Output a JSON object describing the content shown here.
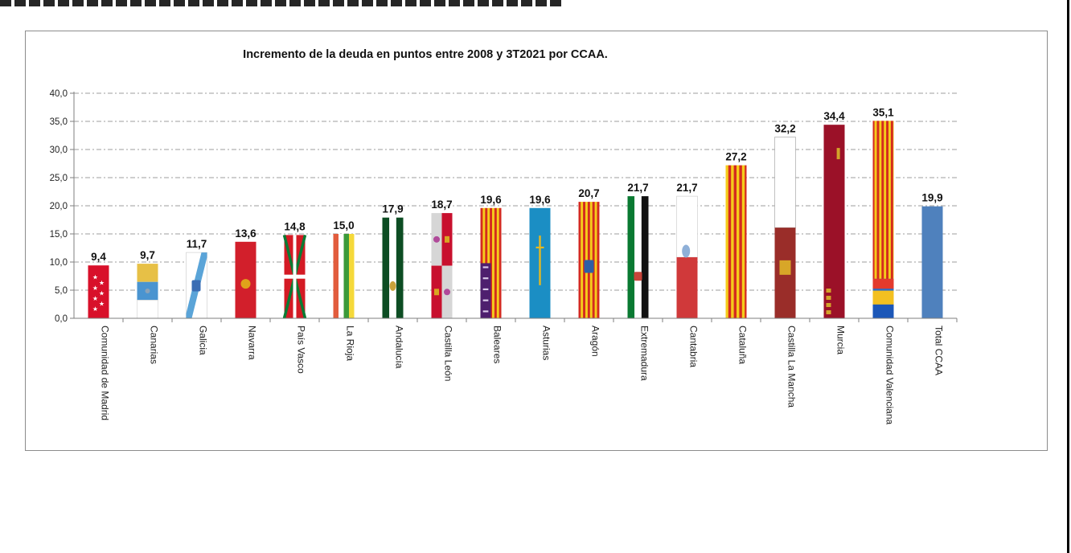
{
  "chart_data": {
    "type": "bar",
    "title": "Incremento de la deuda en puntos entre 2008 y 3T2021 por CCAA.",
    "xlabel": "",
    "ylabel": "",
    "ylim": [
      0,
      40
    ],
    "yticks": [
      "0,0",
      "5,0",
      "10,0",
      "15,0",
      "20,0",
      "25,0",
      "30,0",
      "35,0",
      "40,0"
    ],
    "grid": true,
    "categories": [
      "Comunidad de Madrid",
      "Canarias",
      "Galicia",
      "Navarra",
      "País Vasco",
      "La Rioja",
      "Andalucía",
      "Castilla León",
      "Baleares",
      "Asturias",
      "Aragón",
      "Extremadura",
      "Cantabria",
      "Cataluña",
      "Castilla La Mancha",
      "Murcia",
      "Comunidad Valenciana",
      "Total CCAA"
    ],
    "values": [
      9.4,
      9.7,
      11.7,
      13.6,
      14.8,
      15.0,
      17.9,
      18.7,
      19.6,
      19.6,
      20.7,
      21.7,
      21.7,
      27.2,
      32.2,
      34.4,
      35.1,
      19.9
    ],
    "data_labels": [
      "9,4",
      "9,7",
      "11,7",
      "13,6",
      "14,8",
      "15,0",
      "17,9",
      "18,7",
      "19,6",
      "19,6",
      "20,7",
      "21,7",
      "21,7",
      "27,2",
      "32,2",
      "34,4",
      "35,1",
      "19,9"
    ],
    "bar_fills": [
      "madrid-flag",
      "canarias-flag",
      "galicia-flag",
      "navarra-flag",
      "pais-vasco-flag",
      "la-rioja-flag",
      "andalucia-flag",
      "castilla-leon-flag",
      "baleares-flag",
      "asturias-flag",
      "aragon-flag",
      "extremadura-flag",
      "cantabria-flag",
      "cataluna-flag",
      "castilla-la-mancha-flag",
      "murcia-flag",
      "comunidad-valenciana-flag",
      "solid-blue"
    ],
    "colors": {
      "total_bar": "#4f81bd",
      "grid": "#9e9e9e",
      "axis": "#7f7f7f",
      "madrid_red": "#d8102a",
      "galicia_blue": "#5aa4d8",
      "canarias_yellow": "#e7c046",
      "canarias_blue": "#4a94d0",
      "asturias_blue": "#1b8ec4",
      "andalucia_green": "#0d4d23",
      "senyera_red": "#d42b1f",
      "senyera_yellow": "#f5cc1b",
      "murcia_red": "#9b1128",
      "cantabria_red": "#d0393a",
      "castilla_mancha_red": "#9a2d29"
    }
  }
}
